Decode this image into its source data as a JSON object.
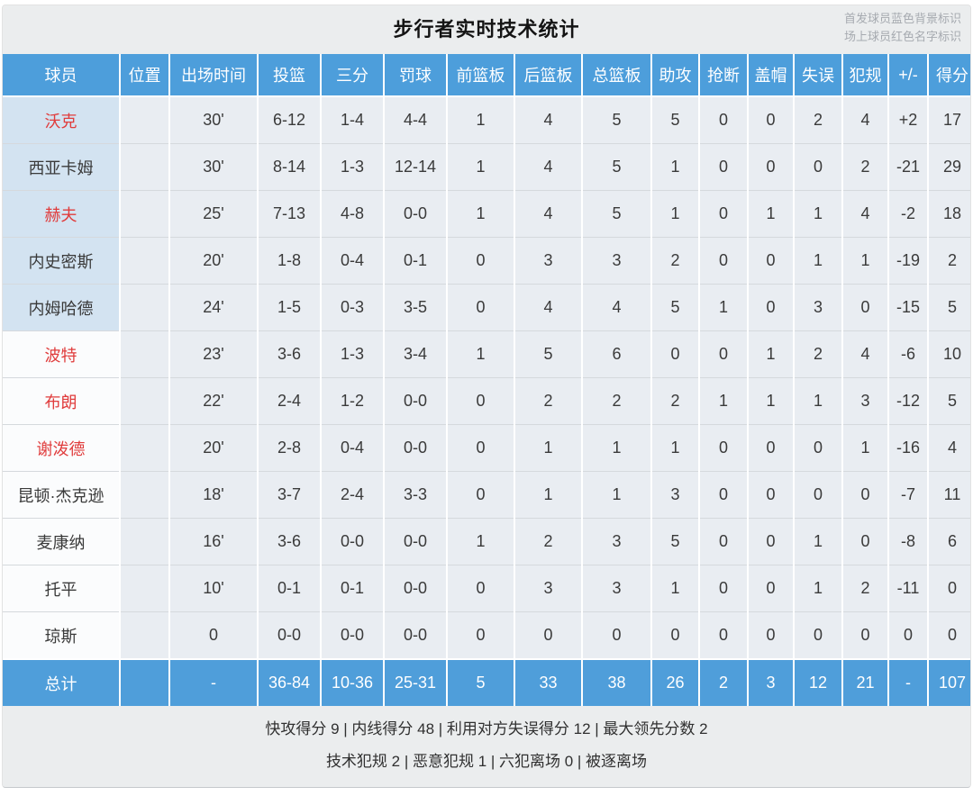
{
  "page": {
    "title": "步行者实时技术统计",
    "legend": [
      "首发球员蓝色背景标识",
      "场上球员红色名字标识"
    ]
  },
  "table": {
    "columns": [
      "球员",
      "位置",
      "出场时间",
      "投篮",
      "三分",
      "罚球",
      "前篮板",
      "后篮板",
      "总篮板",
      "助攻",
      "抢断",
      "盖帽",
      "失误",
      "犯规",
      "+/-",
      "得分"
    ],
    "players": [
      {
        "name": "沃克",
        "starter": true,
        "oncourt": true,
        "stats": [
          "",
          "30'",
          "6-12",
          "1-4",
          "4-4",
          "1",
          "4",
          "5",
          "5",
          "0",
          "0",
          "2",
          "4",
          "+2",
          "17"
        ]
      },
      {
        "name": "西亚卡姆",
        "starter": true,
        "oncourt": false,
        "stats": [
          "",
          "30'",
          "8-14",
          "1-3",
          "12-14",
          "1",
          "4",
          "5",
          "1",
          "0",
          "0",
          "0",
          "2",
          "-21",
          "29"
        ]
      },
      {
        "name": "赫夫",
        "starter": true,
        "oncourt": true,
        "stats": [
          "",
          "25'",
          "7-13",
          "4-8",
          "0-0",
          "1",
          "4",
          "5",
          "1",
          "0",
          "1",
          "1",
          "4",
          "-2",
          "18"
        ]
      },
      {
        "name": "内史密斯",
        "starter": true,
        "oncourt": false,
        "stats": [
          "",
          "20'",
          "1-8",
          "0-4",
          "0-1",
          "0",
          "3",
          "3",
          "2",
          "0",
          "0",
          "1",
          "1",
          "-19",
          "2"
        ]
      },
      {
        "name": "内姆哈德",
        "starter": true,
        "oncourt": false,
        "stats": [
          "",
          "24'",
          "1-5",
          "0-3",
          "3-5",
          "0",
          "4",
          "4",
          "5",
          "1",
          "0",
          "3",
          "0",
          "-15",
          "5"
        ]
      },
      {
        "name": "波特",
        "starter": false,
        "oncourt": true,
        "stats": [
          "",
          "23'",
          "3-6",
          "1-3",
          "3-4",
          "1",
          "5",
          "6",
          "0",
          "0",
          "1",
          "2",
          "4",
          "-6",
          "10"
        ]
      },
      {
        "name": "布朗",
        "starter": false,
        "oncourt": true,
        "stats": [
          "",
          "22'",
          "2-4",
          "1-2",
          "0-0",
          "0",
          "2",
          "2",
          "2",
          "1",
          "1",
          "1",
          "3",
          "-12",
          "5"
        ]
      },
      {
        "name": "谢泼德",
        "starter": false,
        "oncourt": true,
        "stats": [
          "",
          "20'",
          "2-8",
          "0-4",
          "0-0",
          "0",
          "1",
          "1",
          "1",
          "0",
          "0",
          "0",
          "1",
          "-16",
          "4"
        ]
      },
      {
        "name": "昆顿·杰克逊",
        "starter": false,
        "oncourt": false,
        "stats": [
          "",
          "18'",
          "3-7",
          "2-4",
          "3-3",
          "0",
          "1",
          "1",
          "3",
          "0",
          "0",
          "0",
          "0",
          "-7",
          "11"
        ]
      },
      {
        "name": "麦康纳",
        "starter": false,
        "oncourt": false,
        "stats": [
          "",
          "16'",
          "3-6",
          "0-0",
          "0-0",
          "1",
          "2",
          "3",
          "5",
          "0",
          "0",
          "1",
          "0",
          "-8",
          "6"
        ]
      },
      {
        "name": "托平",
        "starter": false,
        "oncourt": false,
        "stats": [
          "",
          "10'",
          "0-1",
          "0-1",
          "0-0",
          "0",
          "3",
          "3",
          "1",
          "0",
          "0",
          "1",
          "2",
          "-11",
          "0"
        ]
      },
      {
        "name": "琼斯",
        "starter": false,
        "oncourt": false,
        "stats": [
          "",
          "0",
          "0-0",
          "0-0",
          "0-0",
          "0",
          "0",
          "0",
          "0",
          "0",
          "0",
          "0",
          "0",
          "0",
          "0"
        ]
      }
    ],
    "totals": {
      "label": "总计",
      "stats": [
        "",
        "-",
        "36-84",
        "10-36",
        "25-31",
        "5",
        "33",
        "38",
        "26",
        "2",
        "3",
        "12",
        "21",
        "-",
        "107"
      ]
    }
  },
  "footer": {
    "line1": "快攻得分 9 | 内线得分 48 | 利用对方失误得分 12 | 最大领先分数 2",
    "line2": "技术犯规 2 | 恶意犯规 1 | 六犯离场 0 | 被逐离场"
  },
  "colors": {
    "header_blue": "#4d9edb",
    "totals_blue": "#4f9eda",
    "starter_bg": "#d3e3f1",
    "oncourt_red": "#e03c3c",
    "row_bg": "#e9edf2",
    "panel_bg": "#ebedee"
  }
}
